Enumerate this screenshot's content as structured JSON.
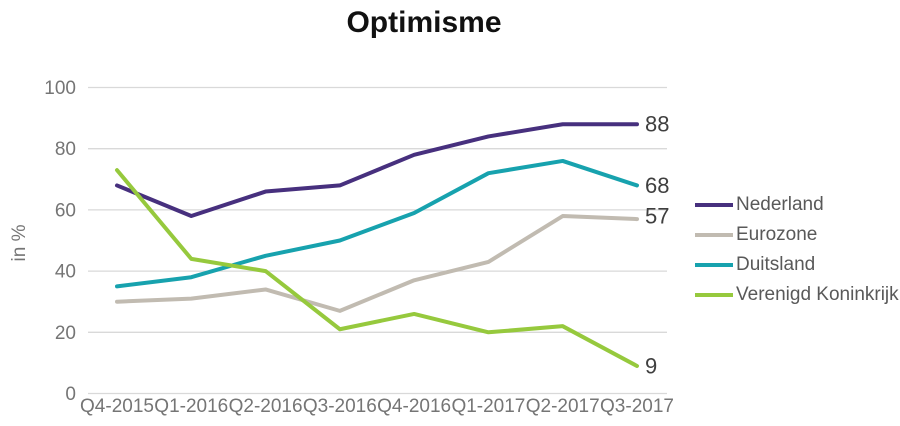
{
  "chart_data": {
    "type": "line",
    "title": "Optimisme",
    "xlabel": "",
    "ylabel": "in %",
    "ylim": [
      0,
      100
    ],
    "yticks": [
      0,
      20,
      40,
      60,
      80,
      100
    ],
    "grid": "horizontal",
    "legend_position": "right",
    "categories": [
      "Q4-2015",
      "Q1-2016",
      "Q2-2016",
      "Q3-2016",
      "Q4-2016",
      "Q1-2017",
      "Q2-2017",
      "Q3-2017"
    ],
    "series": [
      {
        "name": "Nederland",
        "color": "#47307E",
        "values": [
          68,
          58,
          66,
          68,
          78,
          84,
          88,
          88
        ],
        "end_label": "88"
      },
      {
        "name": "Eurozone",
        "color": "#C1BBB1",
        "values": [
          30,
          31,
          34,
          27,
          37,
          43,
          58,
          57
        ],
        "end_label": "57"
      },
      {
        "name": "Duitsland",
        "color": "#17A2AE",
        "values": [
          35,
          38,
          45,
          50,
          59,
          72,
          76,
          68
        ],
        "end_label": "68"
      },
      {
        "name": "Verenigd Koninkrijk",
        "color": "#96C93D",
        "values": [
          73,
          44,
          40,
          21,
          26,
          20,
          22,
          9
        ],
        "end_label": "9"
      }
    ]
  },
  "colors": {
    "background": "#FFFFFF",
    "gridline": "#D9D9D9",
    "axis_text": "#757575",
    "end_label_text": "#3F3F3F",
    "legend_text": "#595959",
    "title_text": "#111111"
  }
}
